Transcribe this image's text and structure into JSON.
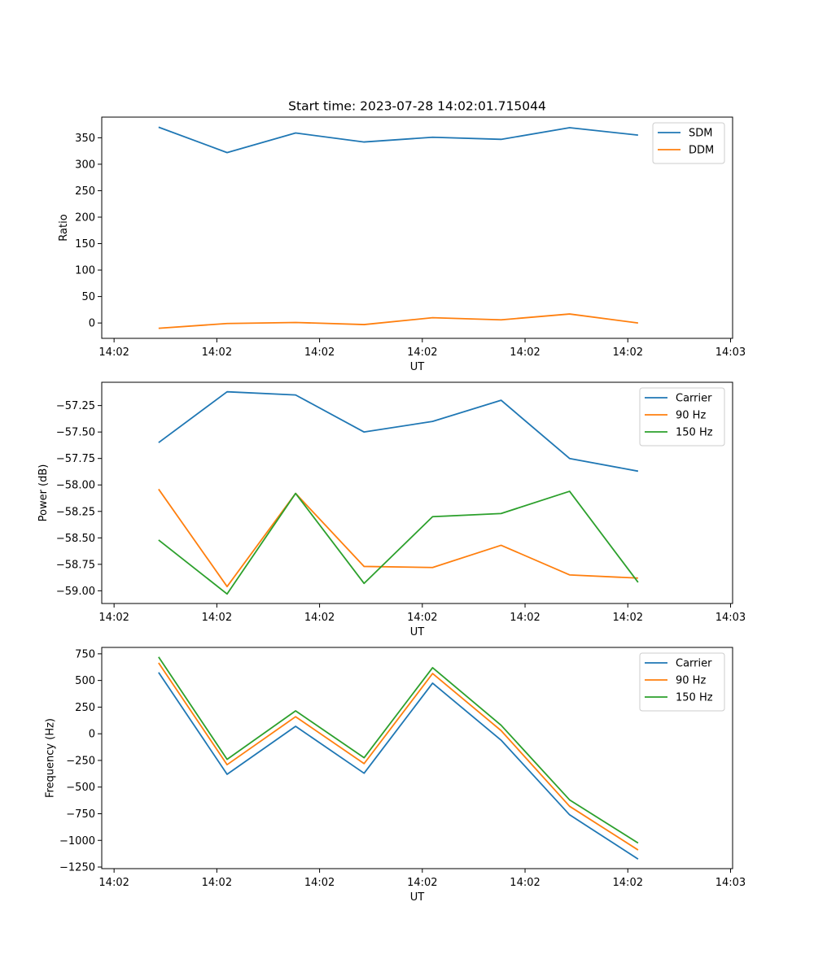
{
  "figure": {
    "title": "Start time: 2023-07-28 14:02:01.715044"
  },
  "chart_data": [
    {
      "type": "line",
      "name": "ratio",
      "title": "Start time: 2023-07-28 14:02:01.715044",
      "xlabel": "UT",
      "ylabel": "Ratio",
      "x": [
        1,
        2,
        3,
        4,
        5,
        6,
        7,
        8
      ],
      "xlim": [
        0.17,
        9.38
      ],
      "xticks": [
        0.35,
        1.85,
        3.35,
        4.85,
        6.35,
        7.85,
        9.35
      ],
      "xticklabels": [
        "14:02",
        "14:02",
        "14:02",
        "14:02",
        "14:02",
        "14:02",
        "14:03"
      ],
      "ylim": [
        -29,
        389
      ],
      "yticks": [
        0,
        50,
        100,
        150,
        200,
        250,
        300,
        350
      ],
      "yticklabels": [
        "0",
        "50",
        "100",
        "150",
        "200",
        "250",
        "300",
        "350"
      ],
      "legend": "top-right",
      "series": [
        {
          "name": "SDM",
          "color": "#1f77b4",
          "values": [
            370,
            322,
            359,
            342,
            351,
            347,
            369,
            355
          ]
        },
        {
          "name": "DDM",
          "color": "#ff7f0e",
          "values": [
            -10,
            -1,
            1,
            -3,
            10,
            6,
            17,
            0
          ]
        }
      ]
    },
    {
      "type": "line",
      "name": "power",
      "title": "",
      "xlabel": "UT",
      "ylabel": "Power (dB)",
      "x": [
        1,
        2,
        3,
        4,
        5,
        6,
        7,
        8
      ],
      "xlim": [
        0.17,
        9.38
      ],
      "xticks": [
        0.35,
        1.85,
        3.35,
        4.85,
        6.35,
        7.85,
        9.35
      ],
      "xticklabels": [
        "14:02",
        "14:02",
        "14:02",
        "14:02",
        "14:02",
        "14:02",
        "14:03"
      ],
      "ylim": [
        -59.12,
        -57.03
      ],
      "yticks": [
        -59.0,
        -58.75,
        -58.5,
        -58.25,
        -58.0,
        -57.75,
        -57.5,
        -57.25
      ],
      "yticklabels": [
        "−59.00",
        "−58.75",
        "−58.50",
        "−58.25",
        "−58.00",
        "−57.75",
        "−57.50",
        "−57.25"
      ],
      "legend": "top-right",
      "series": [
        {
          "name": "Carrier",
          "color": "#1f77b4",
          "values": [
            -57.6,
            -57.12,
            -57.15,
            -57.5,
            -57.4,
            -57.2,
            -57.75,
            -57.87
          ]
        },
        {
          "name": "90 Hz",
          "color": "#ff7f0e",
          "values": [
            -58.04,
            -58.96,
            -58.08,
            -58.77,
            -58.78,
            -58.57,
            -58.85,
            -58.88
          ]
        },
        {
          "name": "150 Hz",
          "color": "#2ca02c",
          "values": [
            -58.52,
            -59.03,
            -58.08,
            -58.93,
            -58.3,
            -58.27,
            -58.06,
            -58.92
          ]
        }
      ]
    },
    {
      "type": "line",
      "name": "frequency",
      "title": "",
      "xlabel": "UT",
      "ylabel": "Frequency (Hz)",
      "x": [
        1,
        2,
        3,
        4,
        5,
        6,
        7,
        8
      ],
      "xlim": [
        0.17,
        9.38
      ],
      "xticks": [
        0.35,
        1.85,
        3.35,
        4.85,
        6.35,
        7.85,
        9.35
      ],
      "xticklabels": [
        "14:02",
        "14:02",
        "14:02",
        "14:02",
        "14:02",
        "14:02",
        "14:03"
      ],
      "ylim": [
        -1265,
        810
      ],
      "yticks": [
        -1250,
        -1000,
        -750,
        -500,
        -250,
        0,
        250,
        500,
        750
      ],
      "yticklabels": [
        "−1250",
        "−1000",
        "−750",
        "−500",
        "−250",
        "0",
        "250",
        "500",
        "750"
      ],
      "legend": "top-right",
      "series": [
        {
          "name": "Carrier",
          "color": "#1f77b4",
          "values": [
            575,
            -380,
            70,
            -370,
            475,
            -60,
            -760,
            -1175
          ]
        },
        {
          "name": "90 Hz",
          "color": "#ff7f0e",
          "values": [
            665,
            -290,
            160,
            -280,
            565,
            30,
            -680,
            -1090
          ]
        },
        {
          "name": "150 Hz",
          "color": "#2ca02c",
          "values": [
            720,
            -240,
            215,
            -225,
            620,
            80,
            -620,
            -1025
          ]
        }
      ]
    }
  ]
}
